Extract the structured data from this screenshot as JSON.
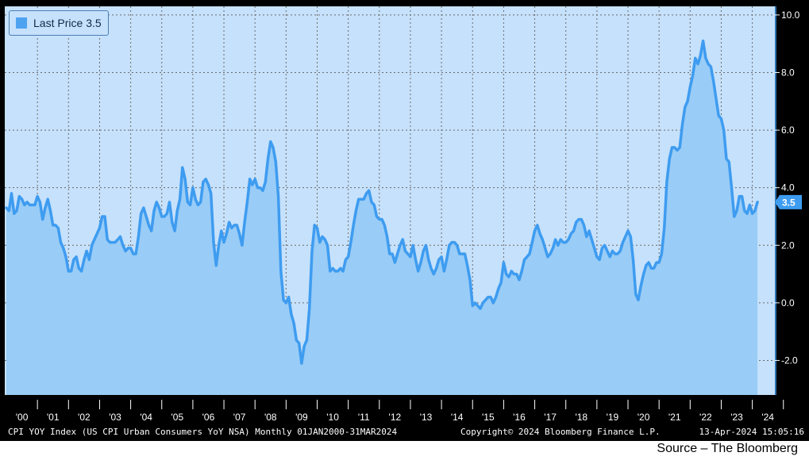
{
  "chart_data": {
    "type": "area",
    "legend": {
      "label": "Last Price",
      "value": "3.5"
    },
    "last_price_marker": "3.5",
    "y_axis": {
      "ticks": [
        "10.0",
        "8.0",
        "6.0",
        "4.0",
        "2.0",
        "0.0",
        "-2.0"
      ],
      "ylim": [
        -3.2,
        10.3
      ],
      "position": "right"
    },
    "x_axis": {
      "labels": [
        "'00",
        "'01",
        "'02",
        "'03",
        "'04",
        "'05",
        "'06",
        "'07",
        "'08",
        "'09",
        "'10",
        "'11",
        "'12",
        "'13",
        "'14",
        "'15",
        "'16",
        "'17",
        "'18",
        "'19",
        "'20",
        "'21",
        "'22",
        "'23",
        "'24"
      ]
    },
    "grid": true,
    "legend_position": "top-left",
    "colors": {
      "line": "#3e9cf0",
      "fill": "#99ccf6",
      "background": "#c6e1fb",
      "frame": "#000000",
      "axis_text": "#ffffff"
    },
    "series": [
      {
        "points": [
          [
            "2000-01",
            3.3
          ],
          [
            "2000-02",
            3.2
          ],
          [
            "2000-03",
            3.8
          ],
          [
            "2000-04",
            3.1
          ],
          [
            "2000-05",
            3.2
          ],
          [
            "2000-06",
            3.7
          ],
          [
            "2000-07",
            3.6
          ],
          [
            "2000-08",
            3.4
          ],
          [
            "2000-09",
            3.5
          ],
          [
            "2000-10",
            3.4
          ],
          [
            "2000-11",
            3.4
          ],
          [
            "2000-12",
            3.4
          ],
          [
            "2001-01",
            3.7
          ],
          [
            "2001-02",
            3.5
          ],
          [
            "2001-03",
            2.9
          ],
          [
            "2001-04",
            3.3
          ],
          [
            "2001-05",
            3.6
          ],
          [
            "2001-06",
            3.2
          ],
          [
            "2001-07",
            2.7
          ],
          [
            "2001-08",
            2.7
          ],
          [
            "2001-09",
            2.6
          ],
          [
            "2001-10",
            2.1
          ],
          [
            "2001-11",
            1.9
          ],
          [
            "2001-12",
            1.6
          ],
          [
            "2002-01",
            1.1
          ],
          [
            "2002-02",
            1.1
          ],
          [
            "2002-03",
            1.5
          ],
          [
            "2002-04",
            1.6
          ],
          [
            "2002-05",
            1.2
          ],
          [
            "2002-06",
            1.1
          ],
          [
            "2002-07",
            1.5
          ],
          [
            "2002-08",
            1.8
          ],
          [
            "2002-09",
            1.5
          ],
          [
            "2002-10",
            2.0
          ],
          [
            "2002-11",
            2.2
          ],
          [
            "2002-12",
            2.4
          ],
          [
            "2003-01",
            2.6
          ],
          [
            "2003-02",
            3.0
          ],
          [
            "2003-03",
            3.0
          ],
          [
            "2003-04",
            2.2
          ],
          [
            "2003-05",
            2.1
          ],
          [
            "2003-06",
            2.1
          ],
          [
            "2003-07",
            2.1
          ],
          [
            "2003-08",
            2.2
          ],
          [
            "2003-09",
            2.3
          ],
          [
            "2003-10",
            2.0
          ],
          [
            "2003-11",
            1.8
          ],
          [
            "2003-12",
            1.9
          ],
          [
            "2004-01",
            1.9
          ],
          [
            "2004-02",
            1.7
          ],
          [
            "2004-03",
            1.7
          ],
          [
            "2004-04",
            2.3
          ],
          [
            "2004-05",
            3.1
          ],
          [
            "2004-06",
            3.3
          ],
          [
            "2004-07",
            3.0
          ],
          [
            "2004-08",
            2.7
          ],
          [
            "2004-09",
            2.5
          ],
          [
            "2004-10",
            3.2
          ],
          [
            "2004-11",
            3.5
          ],
          [
            "2004-12",
            3.3
          ],
          [
            "2005-01",
            3.0
          ],
          [
            "2005-02",
            3.0
          ],
          [
            "2005-03",
            3.1
          ],
          [
            "2005-04",
            3.5
          ],
          [
            "2005-05",
            2.8
          ],
          [
            "2005-06",
            2.5
          ],
          [
            "2005-07",
            3.2
          ],
          [
            "2005-08",
            3.6
          ],
          [
            "2005-09",
            4.7
          ],
          [
            "2005-10",
            4.3
          ],
          [
            "2005-11",
            3.5
          ],
          [
            "2005-12",
            3.4
          ],
          [
            "2006-01",
            4.0
          ],
          [
            "2006-02",
            3.6
          ],
          [
            "2006-03",
            3.4
          ],
          [
            "2006-04",
            3.5
          ],
          [
            "2006-05",
            4.2
          ],
          [
            "2006-06",
            4.3
          ],
          [
            "2006-07",
            4.1
          ],
          [
            "2006-08",
            3.8
          ],
          [
            "2006-09",
            2.1
          ],
          [
            "2006-10",
            1.3
          ],
          [
            "2006-11",
            2.0
          ],
          [
            "2006-12",
            2.5
          ],
          [
            "2007-01",
            2.1
          ],
          [
            "2007-02",
            2.4
          ],
          [
            "2007-03",
            2.8
          ],
          [
            "2007-04",
            2.6
          ],
          [
            "2007-05",
            2.7
          ],
          [
            "2007-06",
            2.7
          ],
          [
            "2007-07",
            2.4
          ],
          [
            "2007-08",
            2.0
          ],
          [
            "2007-09",
            2.8
          ],
          [
            "2007-10",
            3.5
          ],
          [
            "2007-11",
            4.3
          ],
          [
            "2007-12",
            4.1
          ],
          [
            "2008-01",
            4.3
          ],
          [
            "2008-02",
            4.0
          ],
          [
            "2008-03",
            4.0
          ],
          [
            "2008-04",
            3.9
          ],
          [
            "2008-05",
            4.2
          ],
          [
            "2008-06",
            5.0
          ],
          [
            "2008-07",
            5.6
          ],
          [
            "2008-08",
            5.4
          ],
          [
            "2008-09",
            4.9
          ],
          [
            "2008-10",
            3.7
          ],
          [
            "2008-11",
            1.1
          ],
          [
            "2008-12",
            0.1
          ],
          [
            "2009-01",
            0.0
          ],
          [
            "2009-02",
            0.2
          ],
          [
            "2009-03",
            -0.4
          ],
          [
            "2009-04",
            -0.7
          ],
          [
            "2009-05",
            -1.3
          ],
          [
            "2009-06",
            -1.4
          ],
          [
            "2009-07",
            -2.1
          ],
          [
            "2009-08",
            -1.5
          ],
          [
            "2009-09",
            -1.3
          ],
          [
            "2009-10",
            -0.2
          ],
          [
            "2009-11",
            1.8
          ],
          [
            "2009-12",
            2.7
          ],
          [
            "2010-01",
            2.6
          ],
          [
            "2010-02",
            2.1
          ],
          [
            "2010-03",
            2.3
          ],
          [
            "2010-04",
            2.2
          ],
          [
            "2010-05",
            2.0
          ],
          [
            "2010-06",
            1.1
          ],
          [
            "2010-07",
            1.2
          ],
          [
            "2010-08",
            1.1
          ],
          [
            "2010-09",
            1.1
          ],
          [
            "2010-10",
            1.2
          ],
          [
            "2010-11",
            1.1
          ],
          [
            "2010-12",
            1.5
          ],
          [
            "2011-01",
            1.6
          ],
          [
            "2011-02",
            2.1
          ],
          [
            "2011-03",
            2.7
          ],
          [
            "2011-04",
            3.2
          ],
          [
            "2011-05",
            3.6
          ],
          [
            "2011-06",
            3.6
          ],
          [
            "2011-07",
            3.6
          ],
          [
            "2011-08",
            3.8
          ],
          [
            "2011-09",
            3.9
          ],
          [
            "2011-10",
            3.5
          ],
          [
            "2011-11",
            3.4
          ],
          [
            "2011-12",
            3.0
          ],
          [
            "2012-01",
            2.9
          ],
          [
            "2012-02",
            2.9
          ],
          [
            "2012-03",
            2.7
          ],
          [
            "2012-04",
            2.3
          ],
          [
            "2012-05",
            1.7
          ],
          [
            "2012-06",
            1.7
          ],
          [
            "2012-07",
            1.4
          ],
          [
            "2012-08",
            1.7
          ],
          [
            "2012-09",
            2.0
          ],
          [
            "2012-10",
            2.2
          ],
          [
            "2012-11",
            1.8
          ],
          [
            "2012-12",
            1.7
          ],
          [
            "2013-01",
            1.6
          ],
          [
            "2013-02",
            2.0
          ],
          [
            "2013-03",
            1.5
          ],
          [
            "2013-04",
            1.1
          ],
          [
            "2013-05",
            1.4
          ],
          [
            "2013-06",
            1.8
          ],
          [
            "2013-07",
            2.0
          ],
          [
            "2013-08",
            1.5
          ],
          [
            "2013-09",
            1.2
          ],
          [
            "2013-10",
            1.0
          ],
          [
            "2013-11",
            1.2
          ],
          [
            "2013-12",
            1.5
          ],
          [
            "2014-01",
            1.6
          ],
          [
            "2014-02",
            1.1
          ],
          [
            "2014-03",
            1.5
          ],
          [
            "2014-04",
            2.0
          ],
          [
            "2014-05",
            2.1
          ],
          [
            "2014-06",
            2.1
          ],
          [
            "2014-07",
            2.0
          ],
          [
            "2014-08",
            1.7
          ],
          [
            "2014-09",
            1.7
          ],
          [
            "2014-10",
            1.7
          ],
          [
            "2014-11",
            1.3
          ],
          [
            "2014-12",
            0.8
          ],
          [
            "2015-01",
            -0.1
          ],
          [
            "2015-02",
            0.0
          ],
          [
            "2015-03",
            -0.1
          ],
          [
            "2015-04",
            -0.2
          ],
          [
            "2015-05",
            0.0
          ],
          [
            "2015-06",
            0.1
          ],
          [
            "2015-07",
            0.2
          ],
          [
            "2015-08",
            0.2
          ],
          [
            "2015-09",
            0.0
          ],
          [
            "2015-10",
            0.2
          ],
          [
            "2015-11",
            0.5
          ],
          [
            "2015-12",
            0.7
          ],
          [
            "2016-01",
            1.4
          ],
          [
            "2016-02",
            1.0
          ],
          [
            "2016-03",
            0.9
          ],
          [
            "2016-04",
            1.1
          ],
          [
            "2016-05",
            1.0
          ],
          [
            "2016-06",
            1.0
          ],
          [
            "2016-07",
            0.8
          ],
          [
            "2016-08",
            1.1
          ],
          [
            "2016-09",
            1.5
          ],
          [
            "2016-10",
            1.6
          ],
          [
            "2016-11",
            1.7
          ],
          [
            "2016-12",
            2.1
          ],
          [
            "2017-01",
            2.5
          ],
          [
            "2017-02",
            2.7
          ],
          [
            "2017-03",
            2.4
          ],
          [
            "2017-04",
            2.2
          ],
          [
            "2017-05",
            1.9
          ],
          [
            "2017-06",
            1.6
          ],
          [
            "2017-07",
            1.7
          ],
          [
            "2017-08",
            1.9
          ],
          [
            "2017-09",
            2.2
          ],
          [
            "2017-10",
            2.0
          ],
          [
            "2017-11",
            2.2
          ],
          [
            "2017-12",
            2.1
          ],
          [
            "2018-01",
            2.1
          ],
          [
            "2018-02",
            2.2
          ],
          [
            "2018-03",
            2.4
          ],
          [
            "2018-04",
            2.5
          ],
          [
            "2018-05",
            2.8
          ],
          [
            "2018-06",
            2.9
          ],
          [
            "2018-07",
            2.9
          ],
          [
            "2018-08",
            2.7
          ],
          [
            "2018-09",
            2.3
          ],
          [
            "2018-10",
            2.5
          ],
          [
            "2018-11",
            2.2
          ],
          [
            "2018-12",
            1.9
          ],
          [
            "2019-01",
            1.6
          ],
          [
            "2019-02",
            1.5
          ],
          [
            "2019-03",
            1.9
          ],
          [
            "2019-04",
            2.0
          ],
          [
            "2019-05",
            1.8
          ],
          [
            "2019-06",
            1.6
          ],
          [
            "2019-07",
            1.8
          ],
          [
            "2019-08",
            1.7
          ],
          [
            "2019-09",
            1.7
          ],
          [
            "2019-10",
            1.8
          ],
          [
            "2019-11",
            2.1
          ],
          [
            "2019-12",
            2.3
          ],
          [
            "2020-01",
            2.5
          ],
          [
            "2020-02",
            2.3
          ],
          [
            "2020-03",
            1.5
          ],
          [
            "2020-04",
            0.3
          ],
          [
            "2020-05",
            0.1
          ],
          [
            "2020-06",
            0.6
          ],
          [
            "2020-07",
            1.0
          ],
          [
            "2020-08",
            1.3
          ],
          [
            "2020-09",
            1.4
          ],
          [
            "2020-10",
            1.2
          ],
          [
            "2020-11",
            1.2
          ],
          [
            "2020-12",
            1.4
          ],
          [
            "2021-01",
            1.4
          ],
          [
            "2021-02",
            1.7
          ],
          [
            "2021-03",
            2.6
          ],
          [
            "2021-04",
            4.2
          ],
          [
            "2021-05",
            5.0
          ],
          [
            "2021-06",
            5.4
          ],
          [
            "2021-07",
            5.4
          ],
          [
            "2021-08",
            5.3
          ],
          [
            "2021-09",
            5.4
          ],
          [
            "2021-10",
            6.2
          ],
          [
            "2021-11",
            6.8
          ],
          [
            "2021-12",
            7.0
          ],
          [
            "2022-01",
            7.5
          ],
          [
            "2022-02",
            7.9
          ],
          [
            "2022-03",
            8.5
          ],
          [
            "2022-04",
            8.3
          ],
          [
            "2022-05",
            8.6
          ],
          [
            "2022-06",
            9.1
          ],
          [
            "2022-07",
            8.5
          ],
          [
            "2022-08",
            8.3
          ],
          [
            "2022-09",
            8.2
          ],
          [
            "2022-10",
            7.7
          ],
          [
            "2022-11",
            7.1
          ],
          [
            "2022-12",
            6.5
          ],
          [
            "2023-01",
            6.4
          ],
          [
            "2023-02",
            6.0
          ],
          [
            "2023-03",
            5.0
          ],
          [
            "2023-04",
            4.9
          ],
          [
            "2023-05",
            4.0
          ],
          [
            "2023-06",
            3.0
          ],
          [
            "2023-07",
            3.2
          ],
          [
            "2023-08",
            3.7
          ],
          [
            "2023-09",
            3.7
          ],
          [
            "2023-10",
            3.2
          ],
          [
            "2023-11",
            3.1
          ],
          [
            "2023-12",
            3.4
          ],
          [
            "2024-01",
            3.1
          ],
          [
            "2024-02",
            3.2
          ],
          [
            "2024-03",
            3.5
          ]
        ]
      }
    ]
  },
  "footer": {
    "left": "CPI YOY Index (US CPI Urban Consumers YoY NSA)  Monthly 01JAN2000-31MAR2024",
    "middle": "Copyright© 2024 Bloomberg Finance L.P.",
    "right": "13-Apr-2024 15:05:16"
  },
  "source_caption": "Source – The Bloomberg"
}
